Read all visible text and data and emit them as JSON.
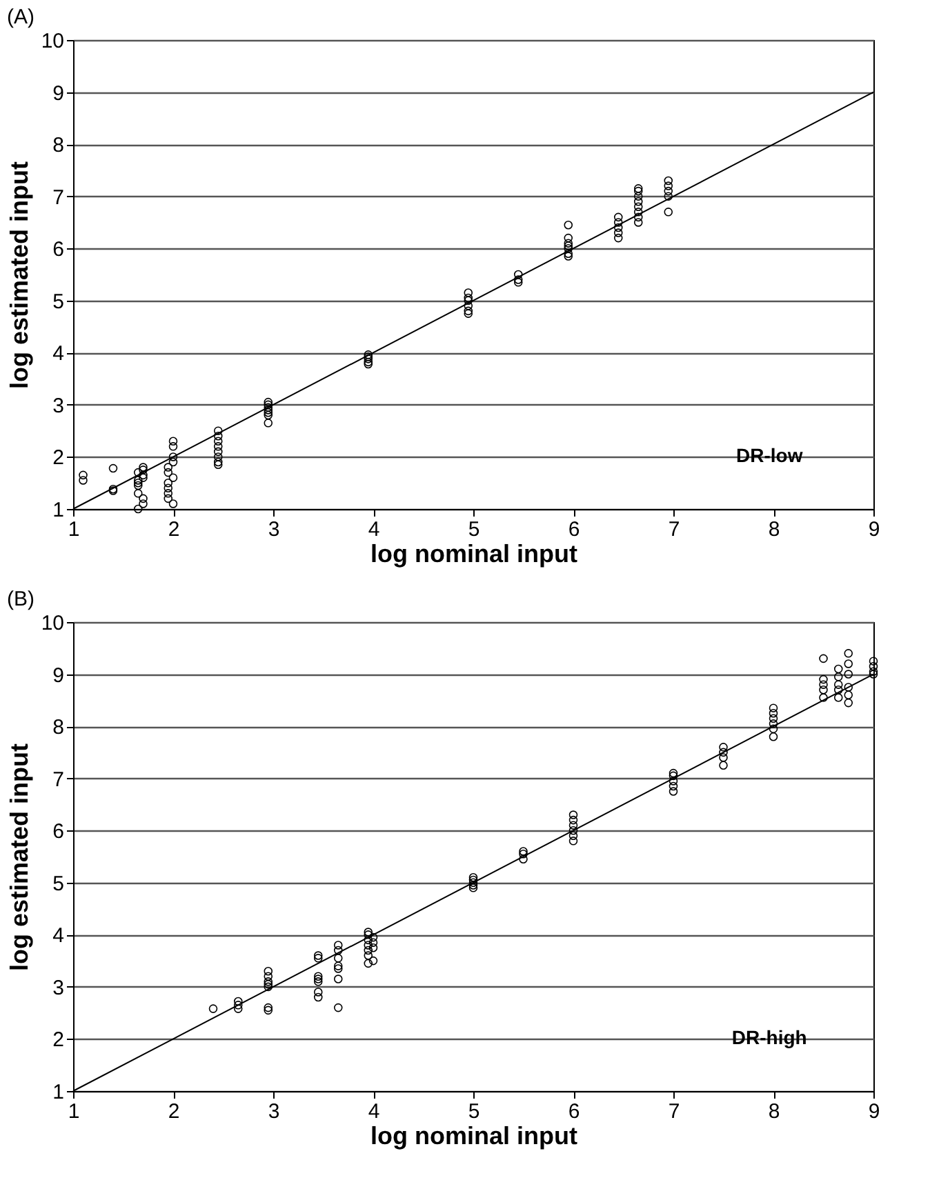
{
  "chart_data": [
    {
      "type": "scatter",
      "title": "(A)",
      "xlabel": "log nominal input",
      "ylabel": "log estimated input",
      "xlim": [
        1,
        9
      ],
      "ylim": [
        1,
        10
      ],
      "xticks": [
        1,
        2,
        3,
        4,
        5,
        6,
        7,
        8,
        9
      ],
      "yticks": [
        1,
        2,
        3,
        4,
        5,
        6,
        7,
        8,
        9,
        10
      ],
      "grid": "y",
      "annotations": [
        "DR-low"
      ],
      "series": [
        {
          "color": "#000000",
          "marker": "circle",
          "x": [
            1.1,
            1.1,
            1.4,
            1.4,
            1.4,
            1.65,
            1.65,
            1.65,
            1.65,
            1.65,
            1.65,
            1.7,
            1.7,
            1.7,
            1.7,
            1.7,
            1.7,
            1.95,
            1.95,
            1.95,
            1.95,
            1.95,
            1.95,
            2.0,
            2.0,
            2.0,
            2.0,
            2.0,
            2.0,
            2.45,
            2.45,
            2.45,
            2.45,
            2.45,
            2.45,
            2.45,
            2.45,
            2.95,
            2.95,
            2.95,
            2.95,
            2.95,
            2.95,
            2.95,
            3.95,
            3.95,
            3.95,
            3.95,
            3.95,
            4.95,
            4.95,
            4.95,
            4.95,
            4.95,
            4.95,
            5.45,
            5.45,
            5.45,
            5.95,
            5.95,
            5.95,
            5.95,
            5.95,
            5.95,
            5.95,
            6.45,
            6.45,
            6.45,
            6.45,
            6.45,
            6.65,
            6.65,
            6.65,
            6.65,
            6.65,
            6.65,
            6.65,
            6.65,
            6.95,
            6.95,
            6.95,
            6.95,
            6.95
          ],
          "values": [
            1.55,
            1.65,
            1.35,
            1.38,
            1.78,
            1.0,
            1.3,
            1.45,
            1.5,
            1.55,
            1.7,
            1.1,
            1.2,
            1.6,
            1.65,
            1.75,
            1.8,
            1.2,
            1.3,
            1.4,
            1.5,
            1.7,
            1.8,
            1.1,
            1.6,
            1.9,
            2.0,
            2.2,
            2.3,
            1.85,
            1.9,
            2.0,
            2.1,
            2.2,
            2.3,
            2.4,
            2.5,
            2.65,
            2.8,
            2.85,
            2.9,
            2.95,
            3.0,
            3.05,
            3.78,
            3.82,
            3.88,
            3.92,
            3.96,
            4.75,
            4.8,
            4.9,
            5.0,
            5.05,
            5.15,
            5.35,
            5.4,
            5.5,
            5.85,
            5.9,
            6.0,
            6.05,
            6.1,
            6.2,
            6.45,
            6.2,
            6.3,
            6.4,
            6.5,
            6.6,
            6.5,
            6.6,
            6.7,
            6.8,
            6.9,
            7.0,
            7.1,
            7.15,
            6.7,
            7.0,
            7.1,
            7.2,
            7.3
          ]
        },
        {
          "type": "line",
          "color": "#000000",
          "x": [
            1,
            9
          ],
          "values": [
            1,
            9
          ]
        }
      ]
    },
    {
      "type": "scatter",
      "title": "(B)",
      "xlabel": "log nominal input",
      "ylabel": "log estimated input",
      "xlim": [
        1,
        9
      ],
      "ylim": [
        1,
        10
      ],
      "xticks": [
        1,
        2,
        3,
        4,
        5,
        6,
        7,
        8,
        9
      ],
      "yticks": [
        1,
        2,
        3,
        4,
        5,
        6,
        7,
        8,
        9,
        10
      ],
      "grid": "y",
      "annotations": [
        "DR-high"
      ],
      "series": [
        {
          "color": "#000000",
          "marker": "circle",
          "x": [
            2.4,
            2.65,
            2.65,
            2.65,
            2.95,
            2.95,
            2.95,
            2.95,
            2.95,
            2.95,
            2.95,
            3.45,
            3.45,
            3.45,
            3.45,
            3.45,
            3.45,
            3.45,
            3.65,
            3.65,
            3.65,
            3.65,
            3.65,
            3.65,
            3.65,
            3.95,
            3.95,
            3.95,
            3.95,
            3.95,
            3.95,
            3.95,
            4.0,
            4.0,
            4.0,
            4.0,
            5.0,
            5.0,
            5.0,
            5.0,
            5.0,
            5.5,
            5.5,
            5.5,
            6.0,
            6.0,
            6.0,
            6.0,
            6.0,
            6.0,
            7.0,
            7.0,
            7.0,
            7.0,
            7.0,
            7.5,
            7.5,
            7.5,
            7.5,
            8.0,
            8.0,
            8.0,
            8.0,
            8.0,
            8.0,
            8.5,
            8.5,
            8.5,
            8.5,
            8.5,
            8.65,
            8.65,
            8.65,
            8.65,
            8.65,
            8.75,
            8.75,
            8.75,
            8.75,
            8.75,
            8.75,
            9.0,
            9.0,
            9.0,
            9.0
          ],
          "values": [
            2.58,
            2.58,
            2.65,
            2.72,
            2.55,
            2.6,
            3.0,
            3.05,
            3.1,
            3.2,
            3.3,
            2.8,
            2.9,
            3.1,
            3.15,
            3.2,
            3.55,
            3.6,
            2.6,
            3.15,
            3.35,
            3.4,
            3.55,
            3.7,
            3.8,
            3.45,
            3.6,
            3.7,
            3.8,
            3.9,
            4.0,
            4.05,
            3.5,
            3.75,
            3.85,
            3.95,
            4.9,
            4.95,
            5.0,
            5.05,
            5.1,
            5.45,
            5.55,
            5.6,
            5.8,
            5.9,
            6.0,
            6.1,
            6.2,
            6.3,
            6.75,
            6.85,
            6.95,
            7.05,
            7.1,
            7.25,
            7.4,
            7.5,
            7.6,
            7.8,
            7.95,
            8.05,
            8.15,
            8.25,
            8.35,
            8.55,
            8.7,
            8.8,
            8.9,
            9.3,
            8.55,
            8.7,
            8.8,
            8.95,
            9.1,
            8.45,
            8.6,
            8.75,
            9.0,
            9.2,
            9.4,
            9.0,
            9.05,
            9.15,
            9.25
          ]
        },
        {
          "type": "line",
          "color": "#000000",
          "x": [
            1,
            9
          ],
          "values": [
            1,
            9
          ]
        }
      ]
    }
  ]
}
